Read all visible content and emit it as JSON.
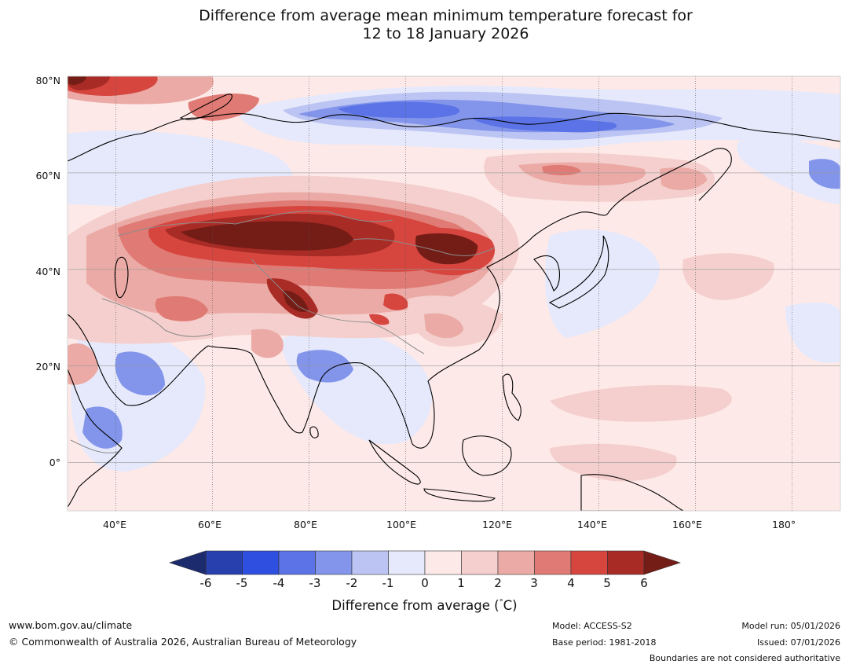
{
  "title": {
    "line1": "Difference from average mean minimum temperature forecast for",
    "line2": "12 to 18 January 2026"
  },
  "map": {
    "region": "Asia",
    "lat_ticks": [
      "80°N",
      "60°N",
      "40°N",
      "20°N",
      "0°"
    ],
    "lon_ticks": [
      "40°E",
      "60°E",
      "80°E",
      "100°E",
      "120°E",
      "140°E",
      "160°E",
      "180°"
    ],
    "lat_range": [
      -10,
      80
    ],
    "lon_range": [
      30,
      190
    ]
  },
  "colorbar": {
    "ticks": [
      "-6",
      "-5",
      "-4",
      "-3",
      "-2",
      "-1",
      "0",
      "1",
      "2",
      "3",
      "4",
      "5",
      "6"
    ],
    "colors": {
      "below": "#1c2a6e",
      "bins": [
        "#283fae",
        "#2f4fe0",
        "#5b73e6",
        "#8395eb",
        "#bcc4f3",
        "#e6e9fb",
        "#fde9e8",
        "#f4cfcd",
        "#ebaaa5",
        "#e07a74",
        "#d6463f",
        "#a82b25"
      ],
      "above": "#741c16"
    },
    "label": "Difference from average (°C)",
    "label_prefix": "Difference from average (",
    "label_degree": "°",
    "label_unit": "C)"
  },
  "footer": {
    "website": "www.bom.gov.au/climate",
    "copyright": "© Commonwealth of Australia 2026, Australian Bureau of Meteorology",
    "model": "Model: ACCESS-S2",
    "base_period": "Base period: 1981-2018",
    "model_run": "Model run: 05/01/2026",
    "issued": "Issued: 07/01/2026",
    "boundaries_note": "Boundaries are not considered authoritative"
  }
}
